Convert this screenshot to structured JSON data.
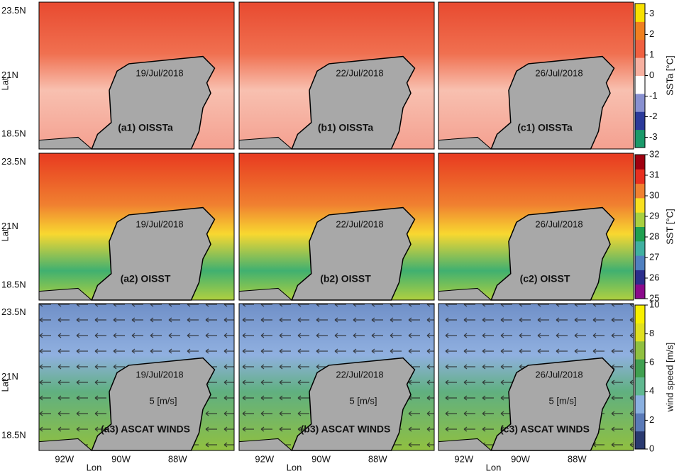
{
  "axes": {
    "lat_label": "Lat",
    "lon_label": "Lon",
    "lat_ticks": [
      "23.5N",
      "21N",
      "18.5N"
    ],
    "lon_ticks": [
      "92W",
      "90W",
      "88W"
    ]
  },
  "rows": [
    {
      "panels": [
        {
          "date": "19/Jul/2018",
          "label": "(a1) OISSTa"
        },
        {
          "date": "22/Jul/2018",
          "label": "(b1) OISSTa"
        },
        {
          "date": "26/Jul/2018",
          "label": "(c1) OISSTa"
        }
      ],
      "colorbar": {
        "label": "SSTa [°C]",
        "lim": [
          -3.5,
          3.5
        ],
        "ticks": [
          3,
          2,
          1,
          0,
          -1,
          -2,
          -3
        ],
        "colors": [
          "#1a9a6a",
          "#2b3a9a",
          "#8890d0",
          "#ffffff",
          "#f7b0a0",
          "#f06040",
          "#f08020",
          "#f7e000"
        ]
      }
    },
    {
      "panels": [
        {
          "date": "19/Jul/2018",
          "label": "(a2) OISST"
        },
        {
          "date": "22/Jul/2018",
          "label": "(b2) OISST"
        },
        {
          "date": "26/Jul/2018",
          "label": "(c2) OISST"
        }
      ],
      "colorbar": {
        "label": "SST [°C]",
        "lim": [
          25,
          32
        ],
        "ticks": [
          32,
          31,
          30,
          29,
          28,
          27,
          26,
          25
        ],
        "colors": [
          "#8b0a8b",
          "#2b2e8c",
          "#5080c0",
          "#40b0a0",
          "#20a050",
          "#a8d040",
          "#f8e020",
          "#f08030",
          "#e83020",
          "#a00010"
        ]
      }
    },
    {
      "panels": [
        {
          "date": "19/Jul/2018",
          "label": "(a3) ASCAT WINDS",
          "scale": "5 [m/s]"
        },
        {
          "date": "22/Jul/2018",
          "label": "(b3) ASCAT WINDS",
          "scale": "5 [m/s]"
        },
        {
          "date": "26/Jul/2018",
          "label": "(c3) ASCAT WINDS",
          "scale": "5 [m/s]"
        }
      ],
      "colorbar": {
        "label": "wind speed [m/s]",
        "lim": [
          0,
          10
        ],
        "ticks": [
          10,
          8,
          6,
          4,
          2,
          0
        ],
        "colors": [
          "#2a3a70",
          "#5a7ab8",
          "#8ab0e0",
          "#60b890",
          "#40a050",
          "#90c040",
          "#e0e020",
          "#f8f000"
        ]
      }
    }
  ]
}
